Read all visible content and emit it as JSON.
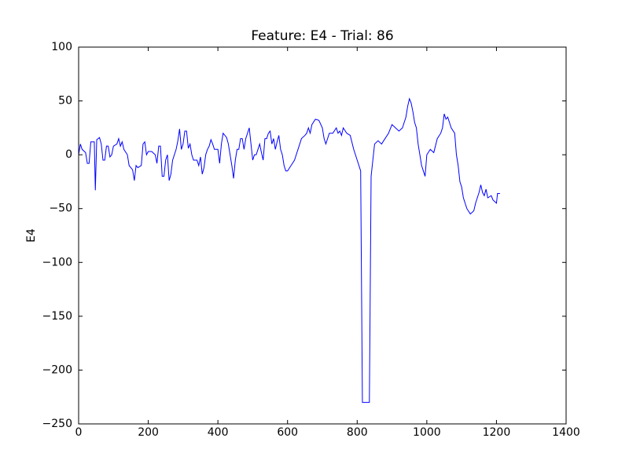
{
  "chart_data": {
    "type": "line",
    "title": "Feature: E4 - Trial: 86",
    "y_label": "E4",
    "x": [
      0,
      5,
      10,
      20,
      25,
      30,
      35,
      45,
      48,
      52,
      60,
      65,
      70,
      75,
      80,
      85,
      90,
      95,
      100,
      110,
      115,
      120,
      125,
      130,
      140,
      145,
      155,
      160,
      165,
      170,
      180,
      185,
      190,
      195,
      200,
      210,
      220,
      225,
      230,
      235,
      240,
      245,
      250,
      255,
      260,
      265,
      270,
      280,
      285,
      290,
      295,
      300,
      305,
      310,
      315,
      320,
      325,
      330,
      340,
      345,
      350,
      355,
      360,
      365,
      370,
      375,
      380,
      385,
      390,
      400,
      405,
      410,
      415,
      425,
      430,
      435,
      440,
      445,
      450,
      455,
      460,
      465,
      470,
      475,
      480,
      490,
      495,
      500,
      505,
      510,
      515,
      520,
      525,
      530,
      535,
      540,
      545,
      550,
      555,
      560,
      565,
      570,
      575,
      580,
      585,
      590,
      595,
      600,
      610,
      620,
      625,
      630,
      640,
      650,
      655,
      660,
      665,
      670,
      680,
      690,
      700,
      705,
      710,
      720,
      730,
      740,
      745,
      750,
      755,
      760,
      770,
      780,
      790,
      795,
      800,
      810,
      815,
      835,
      840,
      845,
      850,
      860,
      870,
      880,
      890,
      900,
      910,
      920,
      930,
      935,
      940,
      945,
      950,
      955,
      960,
      965,
      970,
      975,
      980,
      985,
      990,
      995,
      1000,
      1010,
      1020,
      1030,
      1040,
      1045,
      1050,
      1055,
      1060,
      1065,
      1070,
      1080,
      1085,
      1090,
      1095,
      1100,
      1105,
      1110,
      1115,
      1125,
      1135,
      1140,
      1145,
      1150,
      1155,
      1160,
      1165,
      1170,
      1175,
      1185,
      1190,
      1200,
      1203,
      1210
    ],
    "series": [
      {
        "name": "E4",
        "color": "#0000ff",
        "values": [
          0,
          10,
          5,
          2,
          -8,
          -8,
          12,
          12,
          -33,
          14,
          16,
          10,
          -5,
          -5,
          8,
          8,
          -2,
          0,
          8,
          10,
          15,
          8,
          12,
          5,
          0,
          -10,
          -14,
          -24,
          -10,
          -12,
          -10,
          10,
          12,
          0,
          3,
          3,
          0,
          -8,
          8,
          8,
          -20,
          -20,
          -5,
          0,
          -24,
          -18,
          -5,
          5,
          13,
          24,
          5,
          10,
          22,
          22,
          6,
          10,
          0,
          -5,
          -5,
          -10,
          -2,
          -18,
          -12,
          0,
          5,
          8,
          14,
          10,
          5,
          5,
          -8,
          10,
          20,
          16,
          10,
          0,
          -10,
          -22,
          -5,
          5,
          5,
          15,
          15,
          5,
          15,
          25,
          10,
          -5,
          0,
          0,
          5,
          10,
          2,
          -5,
          15,
          15,
          20,
          22,
          10,
          15,
          5,
          12,
          18,
          5,
          0,
          -10,
          -15,
          -15,
          -10,
          -5,
          0,
          5,
          15,
          18,
          20,
          25,
          20,
          28,
          33,
          32,
          25,
          15,
          10,
          20,
          20,
          25,
          20,
          22,
          18,
          25,
          20,
          18,
          5,
          0,
          -5,
          -15,
          -230,
          -230,
          -20,
          -5,
          10,
          13,
          10,
          15,
          20,
          28,
          25,
          22,
          25,
          30,
          35,
          45,
          52,
          48,
          40,
          30,
          25,
          10,
          0,
          -10,
          -15,
          -20,
          0,
          5,
          2,
          15,
          20,
          25,
          38,
          33,
          35,
          30,
          25,
          20,
          0,
          -10,
          -25,
          -30,
          -40,
          -45,
          -50,
          -55,
          -52,
          -45,
          -40,
          -35,
          -28,
          -35,
          -38,
          -32,
          -40,
          -38,
          -42,
          -45,
          -36,
          -36
        ]
      }
    ],
    "xlim": [
      0,
      1400
    ],
    "xticks": [
      0,
      200,
      400,
      600,
      800,
      1000,
      1200,
      1400
    ],
    "ylim": [
      -250,
      100
    ],
    "yticks": [
      {
        "value": -250,
        "label": "−250"
      },
      {
        "value": -200,
        "label": "−200"
      },
      {
        "value": -150,
        "label": "−150"
      },
      {
        "value": -100,
        "label": "−100"
      },
      {
        "value": -50,
        "label": "−50"
      },
      0,
      50,
      100
    ]
  }
}
